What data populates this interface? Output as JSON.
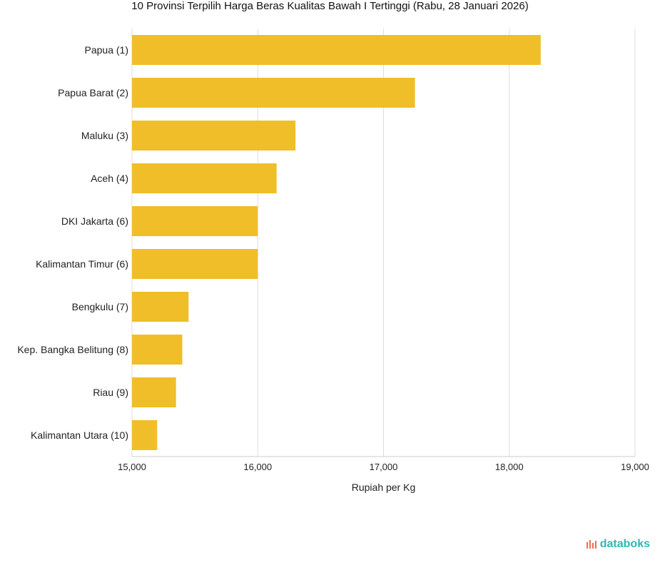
{
  "title": "10 Provinsi Terpilih Harga Beras Kualitas Bawah I Tertinggi (Rabu, 28 Januari 2026)",
  "brand": "databoks",
  "colors": {
    "bar": "#F0BE28",
    "grid": "#dddddd",
    "brand": "#2fb8b2",
    "brand_dot": "#f26b4a"
  },
  "chart_data": {
    "type": "bar",
    "orientation": "horizontal",
    "categories": [
      "Papua (1)",
      "Papua Barat (2)",
      "Maluku (3)",
      "Aceh (4)",
      "DKI Jakarta (6)",
      "Kalimantan Timur (6)",
      "Bengkulu (7)",
      "Kep. Bangka Belitung (8)",
      "Riau (9)",
      "Kalimantan Utara (10)"
    ],
    "values": [
      18250,
      17250,
      16300,
      16150,
      16000,
      16000,
      15450,
      15400,
      15350,
      15200
    ],
    "xlabel": "Rupiah per Kg",
    "xlim": [
      15000,
      19000
    ],
    "ticks": [
      15000,
      16000,
      17000,
      18000,
      19000
    ],
    "tick_labels": [
      "15,000",
      "16,000",
      "17,000",
      "18,000",
      "19,000"
    ],
    "grid": true
  }
}
